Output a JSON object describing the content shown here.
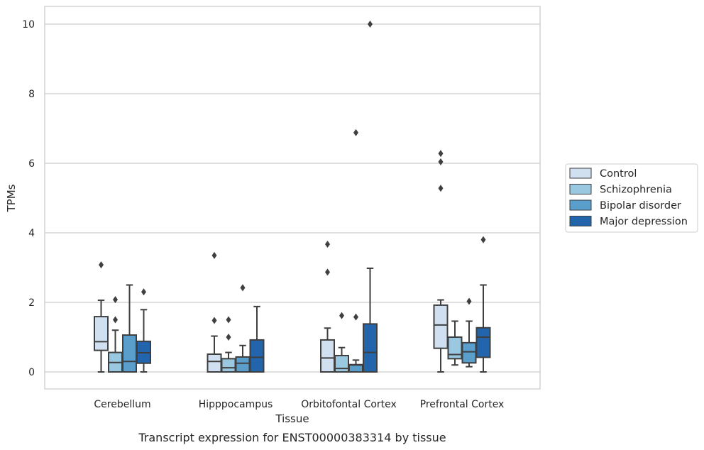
{
  "chart_data": {
    "type": "box",
    "caption": "Transcript expression for ENST00000383314 by tissue",
    "xlabel": "Tissue",
    "ylabel": "TPMs",
    "ylim": [
      -0.5,
      10.5
    ],
    "yticks": [
      0,
      2,
      4,
      6,
      8,
      10
    ],
    "grid": "horizontal",
    "legend_position": "right",
    "categories": [
      "Cerebellum",
      "Hipppocampus",
      "Orbitofontal Cortex",
      "Prefrontal Cortex"
    ],
    "series": [
      {
        "name": "Control",
        "color": "#d1e0f1",
        "boxes": [
          {
            "whisker_low": 0,
            "q1": 0.62,
            "median": 0.87,
            "q3": 1.59,
            "whisker_high": 2.06,
            "outliers": [
              3.08
            ]
          },
          {
            "whisker_low": 0,
            "q1": 0,
            "median": 0.3,
            "q3": 0.51,
            "whisker_high": 1.03,
            "outliers": [
              1.48,
              3.35
            ]
          },
          {
            "whisker_low": 0,
            "q1": 0,
            "median": 0.4,
            "q3": 0.92,
            "whisker_high": 1.26,
            "outliers": [
              2.87,
              3.67
            ]
          },
          {
            "whisker_low": 0,
            "q1": 0.68,
            "median": 1.35,
            "q3": 1.92,
            "whisker_high": 2.07,
            "outliers": [
              5.28,
              6.04,
              6.28
            ]
          }
        ]
      },
      {
        "name": "Schizophrenia",
        "color": "#9ac8e0",
        "boxes": [
          {
            "whisker_low": 0,
            "q1": 0,
            "median": 0.27,
            "q3": 0.56,
            "whisker_high": 1.2,
            "outliers": [
              1.5,
              2.08
            ]
          },
          {
            "whisker_low": 0,
            "q1": 0,
            "median": 0.12,
            "q3": 0.38,
            "whisker_high": 0.56,
            "outliers": [
              1.0,
              1.5
            ]
          },
          {
            "whisker_low": 0,
            "q1": 0,
            "median": 0.1,
            "q3": 0.47,
            "whisker_high": 0.7,
            "outliers": [
              1.62
            ]
          },
          {
            "whisker_low": 0.2,
            "q1": 0.38,
            "median": 0.5,
            "q3": 1.0,
            "whisker_high": 1.46,
            "outliers": []
          }
        ]
      },
      {
        "name": "Bipolar disorder",
        "color": "#5a9ecc",
        "boxes": [
          {
            "whisker_low": 0,
            "q1": 0,
            "median": 0.3,
            "q3": 1.06,
            "whisker_high": 2.5,
            "outliers": []
          },
          {
            "whisker_low": 0,
            "q1": 0,
            "median": 0.25,
            "q3": 0.43,
            "whisker_high": 0.76,
            "outliers": [
              2.42
            ]
          },
          {
            "whisker_low": 0,
            "q1": 0,
            "median": 0.2,
            "q3": 0.21,
            "whisker_high": 0.34,
            "outliers": [
              1.58,
              6.88
            ]
          },
          {
            "whisker_low": 0.15,
            "q1": 0.26,
            "median": 0.58,
            "q3": 0.84,
            "whisker_high": 1.46,
            "outliers": [
              2.03
            ]
          }
        ]
      },
      {
        "name": "Major depression",
        "color": "#2265ac",
        "boxes": [
          {
            "whisker_low": 0,
            "q1": 0.25,
            "median": 0.55,
            "q3": 0.88,
            "whisker_high": 1.79,
            "outliers": [
              2.3
            ]
          },
          {
            "whisker_low": 0,
            "q1": 0,
            "median": 0.42,
            "q3": 0.92,
            "whisker_high": 1.88,
            "outliers": []
          },
          {
            "whisker_low": 0,
            "q1": 0,
            "median": 0.56,
            "q3": 1.38,
            "whisker_high": 2.98,
            "outliers": [
              10.0
            ]
          },
          {
            "whisker_low": 0,
            "q1": 0.42,
            "median": 1.0,
            "q3": 1.27,
            "whisker_high": 2.5,
            "outliers": [
              3.8
            ]
          }
        ]
      }
    ]
  }
}
